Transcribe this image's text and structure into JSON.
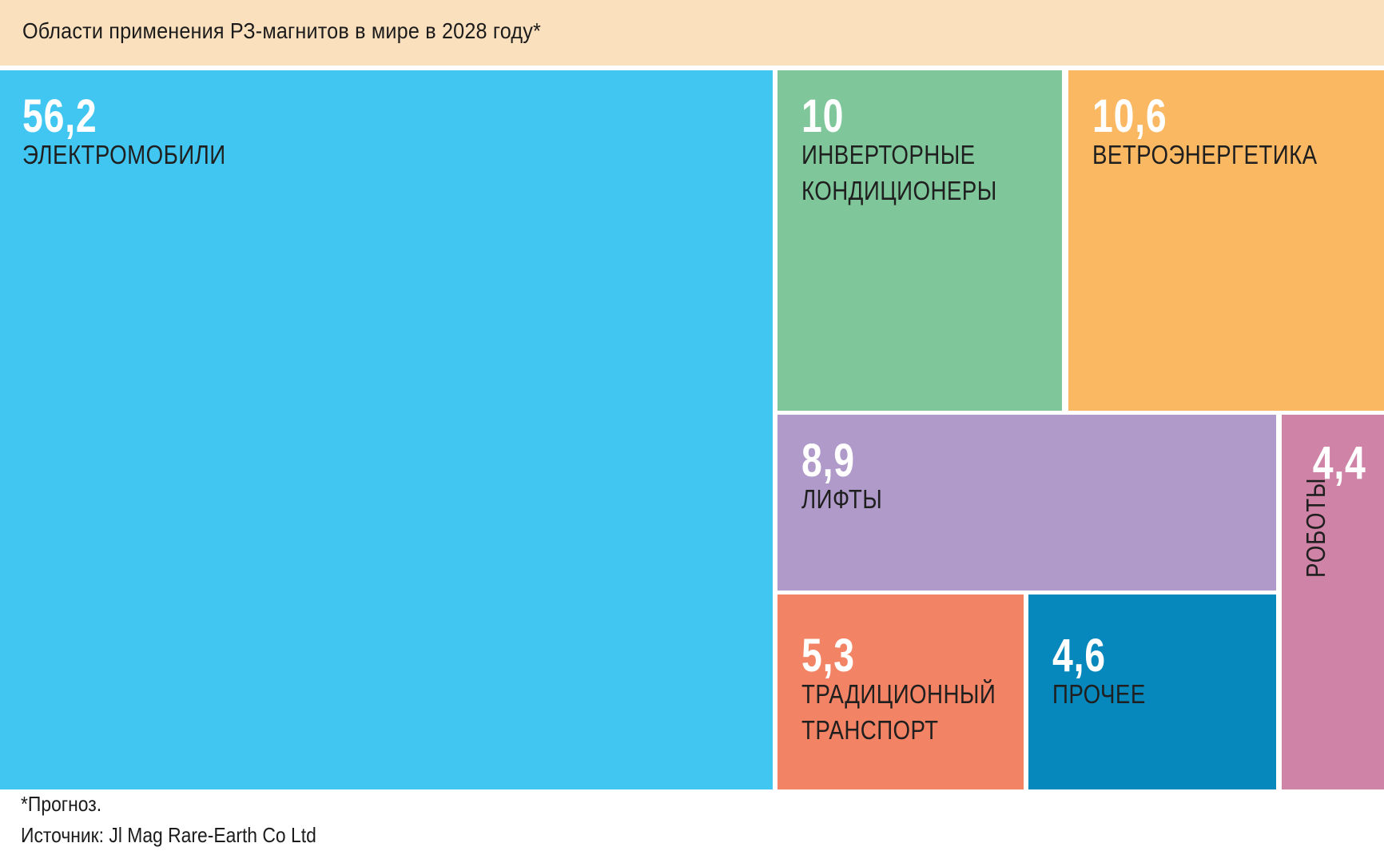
{
  "header": {
    "title": "Области применения РЗ-магнитов в мире в 2028 году*",
    "background": "#FBE0BE"
  },
  "footer": {
    "footnote": "*Прогноз.",
    "source": "Источник: Jl Mag Rare-Earth Co Ltd"
  },
  "chart_data": {
    "type": "treemap",
    "title": "Области применения РЗ-магнитов в мире в 2028 году*",
    "footnote": "*Прогноз.",
    "source": "Источник: Jl Mag Rare-Earth Co Ltd",
    "header_background": "#FBE0BE",
    "value_text_color": "#FFFFFF",
    "label_text_color": "#1F1F1F",
    "gap_color": "#FFFFFF",
    "items": [
      {
        "key": "electric_vehicles",
        "label": "ЭЛЕКТРОМОБИЛИ",
        "label_lines": [
          "ЭЛЕКТРОМОБИЛИ"
        ],
        "value": 56.2,
        "display": "56,2",
        "color": "#41C5F1"
      },
      {
        "key": "inverter_air_conditioners",
        "label": "ИНВЕРТОРНЫЕ КОНДИЦИОНЕРЫ",
        "label_lines": [
          "ИНВЕРТОРНЫЕ",
          "КОНДИЦИОНЕРЫ"
        ],
        "value": 10,
        "display": "10",
        "color": "#7FC69A"
      },
      {
        "key": "wind_power",
        "label": "ВЕТРОЭНЕРГЕТИКА",
        "label_lines": [
          "ВЕТРОЭНЕРГЕТИКА"
        ],
        "value": 10.6,
        "display": "10,6",
        "color": "#FAB862"
      },
      {
        "key": "elevators",
        "label": "ЛИФТЫ",
        "label_lines": [
          "ЛИФТЫ"
        ],
        "value": 8.9,
        "display": "8,9",
        "color": "#AF9ACA"
      },
      {
        "key": "robots",
        "label": "РОБОТЫ",
        "value": 4.4,
        "display": "4,4",
        "color": "#CF83A6",
        "label_rotation": "vertical-bottom-up"
      },
      {
        "key": "traditional_transport",
        "label": "ТРАДИЦИОННЫЙ ТРАНСПОРТ",
        "label_lines": [
          "ТРАДИЦИОННЫЙ",
          "ТРАНСПОРТ"
        ],
        "value": 5.3,
        "display": "5,3",
        "color": "#F28465"
      },
      {
        "key": "other",
        "label": "ПРОЧЕЕ",
        "label_lines": [
          "ПРОЧЕЕ"
        ],
        "value": 4.6,
        "display": "4,6",
        "color": "#0788BC"
      }
    ]
  }
}
